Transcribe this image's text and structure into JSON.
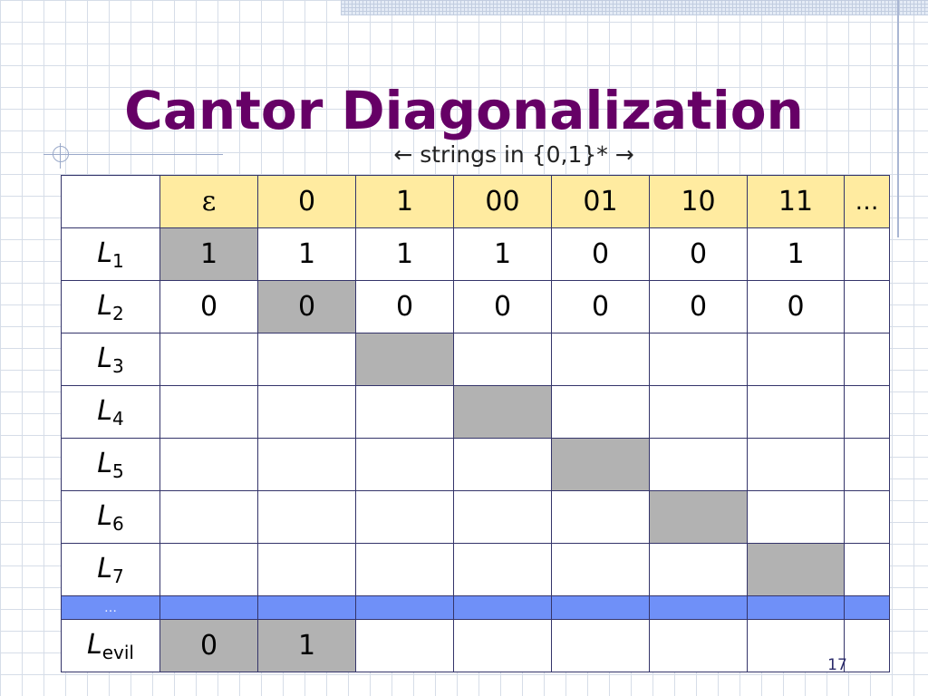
{
  "slide": {
    "title": "Cantor Diagonalization",
    "subtitle": "← strings in {0,1}* →",
    "page_number": "17"
  },
  "table": {
    "headers": [
      "ε",
      "0",
      "1",
      "00",
      "01",
      "10",
      "11",
      "…"
    ],
    "rows": [
      {
        "letter": "L",
        "sub": "1",
        "cells": [
          "1",
          "1",
          "1",
          "1",
          "0",
          "0",
          "1",
          ""
        ]
      },
      {
        "letter": "L",
        "sub": "2",
        "cells": [
          "0",
          "0",
          "0",
          "0",
          "0",
          "0",
          "0",
          ""
        ]
      },
      {
        "letter": "L",
        "sub": "3",
        "cells": [
          "",
          "",
          "",
          "",
          "",
          "",
          "",
          ""
        ]
      },
      {
        "letter": "L",
        "sub": "4",
        "cells": [
          "",
          "",
          "",
          "",
          "",
          "",
          "",
          ""
        ]
      },
      {
        "letter": "L",
        "sub": "5",
        "cells": [
          "",
          "",
          "",
          "",
          "",
          "",
          "",
          ""
        ]
      },
      {
        "letter": "L",
        "sub": "6",
        "cells": [
          "",
          "",
          "",
          "",
          "",
          "",
          "",
          ""
        ]
      },
      {
        "letter": "L",
        "sub": "7",
        "cells": [
          "",
          "",
          "",
          "",
          "",
          "",
          "",
          ""
        ]
      }
    ],
    "ellipsis_label": "…",
    "evil_row": {
      "letter": "L",
      "sub": "evil",
      "cells": [
        "0",
        "1",
        "",
        "",
        "",
        "",
        "",
        ""
      ]
    }
  },
  "colors": {
    "title": "#660066",
    "header_fill": "#ffeba0",
    "diagonal_fill": "#b2b2b2",
    "ellipsis_row_fill": "#6f90f8",
    "grid_border": "#34346a"
  }
}
